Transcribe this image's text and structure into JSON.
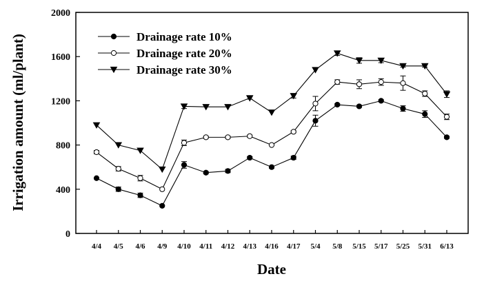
{
  "chart_data": {
    "type": "line",
    "title": "",
    "xlabel": "Date",
    "ylabel": "Irrigation amount (ml/plant)",
    "ylim": [
      0,
      2000
    ],
    "yticks": [
      0,
      400,
      800,
      1200,
      1600,
      2000
    ],
    "categories": [
      "4/4",
      "4/5",
      "4/6",
      "4/9",
      "4/10",
      "4/11",
      "4/12",
      "4/13",
      "4/16",
      "4/17",
      "5/4",
      "5/8",
      "5/15",
      "5/17",
      "5/25",
      "5/31",
      "6/13"
    ],
    "legend_position": "top-left",
    "series": [
      {
        "name": "Drainage rate 10%",
        "marker": "filled-circle",
        "values": [
          500,
          400,
          345,
          250,
          620,
          550,
          565,
          685,
          600,
          685,
          1020,
          1165,
          1150,
          1200,
          1130,
          1080,
          870
        ],
        "errors": [
          0,
          20,
          20,
          0,
          30,
          10,
          15,
          10,
          10,
          15,
          50,
          10,
          10,
          10,
          25,
          30,
          10
        ]
      },
      {
        "name": "Drainage rate 20%",
        "marker": "open-circle",
        "values": [
          735,
          585,
          500,
          400,
          820,
          870,
          870,
          880,
          800,
          920,
          1175,
          1370,
          1350,
          1370,
          1360,
          1265,
          1055
        ],
        "errors": [
          15,
          20,
          25,
          0,
          25,
          10,
          10,
          10,
          5,
          10,
          65,
          20,
          40,
          30,
          65,
          25,
          25
        ]
      },
      {
        "name": "Drainage rate 30%",
        "marker": "filled-triangle-down",
        "values": [
          980,
          800,
          750,
          580,
          1150,
          1145,
          1145,
          1225,
          1095,
          1245,
          1480,
          1630,
          1565,
          1565,
          1515,
          1515,
          1260
        ],
        "errors": [
          0,
          0,
          0,
          0,
          20,
          0,
          0,
          10,
          0,
          20,
          0,
          20,
          25,
          20,
          10,
          10,
          30
        ]
      }
    ]
  }
}
